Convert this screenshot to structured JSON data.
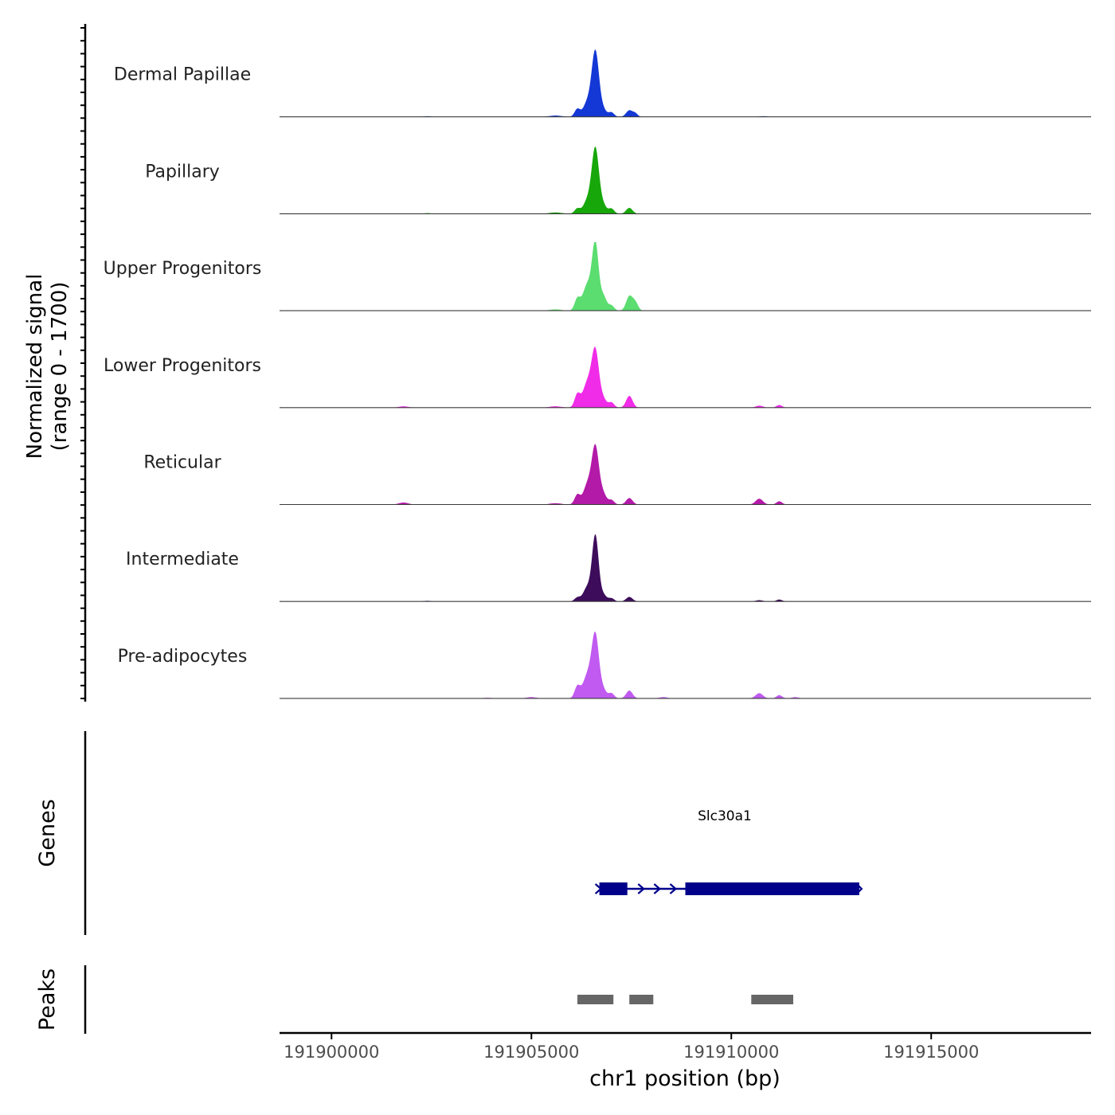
{
  "chart_data": {
    "type": "area",
    "title": "",
    "ylabel_line1": "Normalized signal",
    "ylabel_line2": "(range 0 - 1700)",
    "yrange": [
      0,
      1700
    ],
    "xlabel": "chr1 position (bp)",
    "xlim": [
      191898700,
      191919000
    ],
    "xticks": [
      191900000,
      191905000,
      191910000,
      191915000
    ],
    "xtick_labels": [
      "191900000",
      "191905000",
      "191910000",
      "191915000"
    ],
    "tracks": [
      {
        "name": "Dermal Papillae",
        "color": "#1438D6",
        "peaks": [
          [
            191906600,
            1.0,
            90
          ],
          [
            191906400,
            0.22,
            100
          ],
          [
            191906150,
            0.12,
            70
          ],
          [
            191906800,
            0.1,
            80
          ],
          [
            191907000,
            0.07,
            70
          ],
          [
            191907450,
            0.1,
            80
          ],
          [
            191907600,
            0.05,
            60
          ],
          [
            191905600,
            0.02,
            150
          ],
          [
            191902400,
            0.01,
            80
          ],
          [
            191910800,
            0.01,
            100
          ]
        ]
      },
      {
        "name": "Papillary",
        "color": "#17A70A",
        "peaks": [
          [
            191906600,
            1.0,
            90
          ],
          [
            191906400,
            0.2,
            100
          ],
          [
            191906150,
            0.08,
            70
          ],
          [
            191906800,
            0.12,
            80
          ],
          [
            191907000,
            0.08,
            70
          ],
          [
            191907450,
            0.09,
            80
          ],
          [
            191905600,
            0.02,
            150
          ],
          [
            191902400,
            0.01,
            80
          ]
        ]
      },
      {
        "name": "Upper Progenitors",
        "color": "#5BDD70",
        "peaks": [
          [
            191906600,
            1.0,
            80
          ],
          [
            191906400,
            0.4,
            110
          ],
          [
            191906150,
            0.18,
            70
          ],
          [
            191906800,
            0.22,
            80
          ],
          [
            191907000,
            0.08,
            70
          ],
          [
            191907450,
            0.22,
            80
          ],
          [
            191907600,
            0.12,
            70
          ],
          [
            191905600,
            0.02,
            150
          ]
        ]
      },
      {
        "name": "Lower Progenitors",
        "color": "#F02CE8",
        "peaks": [
          [
            191906600,
            0.85,
            90
          ],
          [
            191906400,
            0.38,
            110
          ],
          [
            191906150,
            0.2,
            70
          ],
          [
            191906800,
            0.12,
            80
          ],
          [
            191907000,
            0.08,
            70
          ],
          [
            191907450,
            0.18,
            80
          ],
          [
            191901800,
            0.02,
            120
          ],
          [
            191910700,
            0.03,
            90
          ],
          [
            191911200,
            0.04,
            70
          ],
          [
            191905600,
            0.02,
            150
          ]
        ]
      },
      {
        "name": "Reticular",
        "color": "#B31AA8",
        "peaks": [
          [
            191906600,
            0.88,
            90
          ],
          [
            191906400,
            0.3,
            100
          ],
          [
            191906150,
            0.15,
            70
          ],
          [
            191906800,
            0.15,
            80
          ],
          [
            191907000,
            0.07,
            70
          ],
          [
            191907450,
            0.1,
            80
          ],
          [
            191901800,
            0.03,
            120
          ],
          [
            191910700,
            0.09,
            90
          ],
          [
            191911200,
            0.05,
            70
          ],
          [
            191905600,
            0.02,
            150
          ]
        ]
      },
      {
        "name": "Intermediate",
        "color": "#3D0C5B",
        "peaks": [
          [
            191906600,
            1.0,
            80
          ],
          [
            191906400,
            0.22,
            100
          ],
          [
            191906150,
            0.06,
            70
          ],
          [
            191906800,
            0.1,
            80
          ],
          [
            191907000,
            0.05,
            70
          ],
          [
            191907450,
            0.07,
            80
          ],
          [
            191910700,
            0.02,
            90
          ],
          [
            191911200,
            0.03,
            70
          ],
          [
            191902400,
            0.01,
            80
          ]
        ]
      },
      {
        "name": "Pre-adipocytes",
        "color": "#C05AF0",
        "peaks": [
          [
            191906600,
            0.95,
            90
          ],
          [
            191906400,
            0.35,
            110
          ],
          [
            191906150,
            0.18,
            70
          ],
          [
            191906800,
            0.12,
            80
          ],
          [
            191907000,
            0.08,
            70
          ],
          [
            191907450,
            0.12,
            80
          ],
          [
            191910700,
            0.08,
            90
          ],
          [
            191911200,
            0.05,
            70
          ],
          [
            191905000,
            0.02,
            120
          ],
          [
            191908300,
            0.02,
            100
          ],
          [
            191911600,
            0.02,
            80
          ],
          [
            191903900,
            0.01,
            100
          ]
        ]
      }
    ],
    "genes": {
      "label": "Genes",
      "gene_name": "Slc30a1",
      "color": "#00008B",
      "strand": "+",
      "start": 191906700,
      "end": 191913200,
      "exons": [
        [
          191906700,
          191907400
        ],
        [
          191908850,
          191913200
        ]
      ]
    },
    "peaks_track": {
      "label": "Peaks",
      "color": "#666666",
      "regions": [
        [
          191906150,
          191907050
        ],
        [
          191907450,
          191908050
        ],
        [
          191910500,
          191911550
        ]
      ]
    }
  }
}
